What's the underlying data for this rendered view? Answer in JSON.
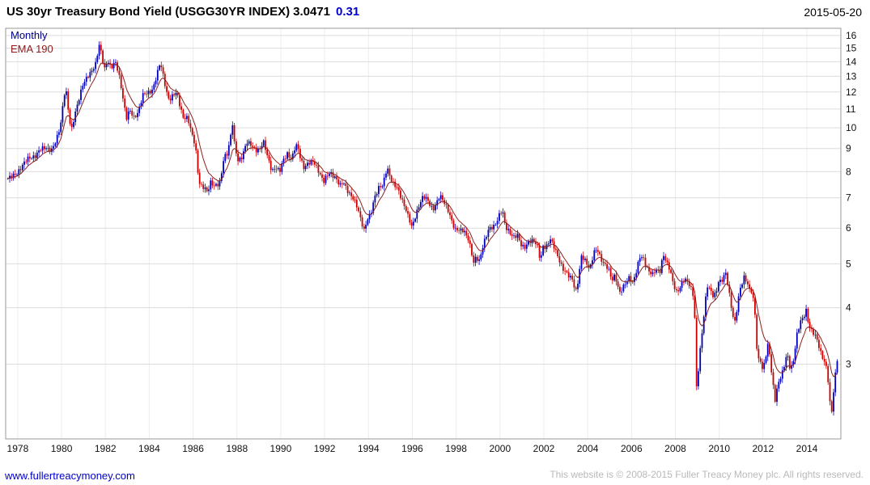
{
  "header": {
    "title": "US 30yr Treasury Bond Yield (USGG30YR INDEX)",
    "price": "3.0471",
    "change": "0.31",
    "date": "2015-05-20"
  },
  "chart": {
    "timeframe_label": "Monthly",
    "ema_label": "EMA 190"
  },
  "footer": {
    "link": "www.fullertreacymoney.com",
    "copyright": "This website is © 2008-2015 Fuller Treacy Money plc. All rights reserved."
  },
  "chart_data": {
    "type": "candlestick",
    "title": "US 30yr Treasury Bond Yield (USGG30YR INDEX)",
    "timeframe": "Monthly",
    "overlay": "EMA 190",
    "unit": "percent yield",
    "last": 3.0471,
    "change": 0.31,
    "date": "2015-05-20",
    "y_axis": {
      "scale": "log",
      "side": "right",
      "ticks": [
        3,
        4,
        5,
        6,
        7,
        8,
        9,
        10,
        11,
        12,
        13,
        14,
        15,
        16
      ],
      "range": [
        2.05,
        16.6
      ]
    },
    "x_axis": {
      "ticks": [
        1978,
        1980,
        1982,
        1984,
        1986,
        1988,
        1990,
        1992,
        1994,
        1996,
        1998,
        2000,
        2002,
        2004,
        2006,
        2008,
        2010,
        2012,
        2014
      ],
      "range": [
        1977.45,
        2015.55
      ]
    },
    "colors": {
      "up": "#0000bb",
      "down": "#cc0000",
      "ema": "#8b2020",
      "grid_h": "#dcdcdc",
      "grid_v": "#ececec",
      "border": "#9a9a9a",
      "change_text": "#0000cc",
      "link": "#0000cc",
      "copyright_text": "#b9b9b9"
    },
    "ema_smoothing_months": 9,
    "series_anchors": [
      [
        1977.55,
        7.72
      ],
      [
        1977.75,
        7.78
      ],
      [
        1977.95,
        7.94
      ],
      [
        1978.2,
        8.25
      ],
      [
        1978.5,
        8.55
      ],
      [
        1978.8,
        8.7
      ],
      [
        1979.0,
        8.9
      ],
      [
        1979.3,
        9.05
      ],
      [
        1979.55,
        8.95
      ],
      [
        1979.75,
        9.3
      ],
      [
        1979.95,
        10.1
      ],
      [
        1980.1,
        11.7
      ],
      [
        1980.18,
        12.4
      ],
      [
        1980.35,
        10.4
      ],
      [
        1980.45,
        9.8
      ],
      [
        1980.7,
        11.2
      ],
      [
        1980.95,
        12.4
      ],
      [
        1981.1,
        12.7
      ],
      [
        1981.3,
        13.2
      ],
      [
        1981.55,
        13.9
      ],
      [
        1981.72,
        15.2
      ],
      [
        1981.85,
        14.3
      ],
      [
        1981.95,
        13.4
      ],
      [
        1982.1,
        14.2
      ],
      [
        1982.25,
        13.6
      ],
      [
        1982.45,
        13.9
      ],
      [
        1982.6,
        13.2
      ],
      [
        1982.75,
        12.1
      ],
      [
        1982.95,
        10.5
      ],
      [
        1983.1,
        10.9
      ],
      [
        1983.3,
        10.5
      ],
      [
        1983.5,
        10.9
      ],
      [
        1983.7,
        11.8
      ],
      [
        1983.95,
        11.9
      ],
      [
        1984.15,
        12.2
      ],
      [
        1984.35,
        13.1
      ],
      [
        1984.5,
        13.9
      ],
      [
        1984.65,
        12.9
      ],
      [
        1984.85,
        11.7
      ],
      [
        1984.95,
        11.6
      ],
      [
        1985.1,
        11.8
      ],
      [
        1985.25,
        11.9
      ],
      [
        1985.4,
        11.2
      ],
      [
        1985.55,
        10.6
      ],
      [
        1985.75,
        10.5
      ],
      [
        1985.95,
        9.6
      ],
      [
        1986.1,
        9.2
      ],
      [
        1986.25,
        7.7
      ],
      [
        1986.35,
        7.45
      ],
      [
        1986.55,
        7.3
      ],
      [
        1986.65,
        7.17
      ],
      [
        1986.8,
        7.6
      ],
      [
        1986.95,
        7.5
      ],
      [
        1987.1,
        7.45
      ],
      [
        1987.25,
        7.55
      ],
      [
        1987.4,
        8.6
      ],
      [
        1987.55,
        8.8
      ],
      [
        1987.7,
        9.5
      ],
      [
        1987.8,
        10.2
      ],
      [
        1987.9,
        9.0
      ],
      [
        1988.05,
        8.45
      ],
      [
        1988.2,
        8.6
      ],
      [
        1988.45,
        9.3
      ],
      [
        1988.65,
        9.1
      ],
      [
        1988.85,
        8.95
      ],
      [
        1989.05,
        9.0
      ],
      [
        1989.2,
        9.3
      ],
      [
        1989.4,
        8.6
      ],
      [
        1989.6,
        8.05
      ],
      [
        1989.75,
        8.2
      ],
      [
        1989.95,
        7.95
      ],
      [
        1990.1,
        8.45
      ],
      [
        1990.3,
        8.8
      ],
      [
        1990.5,
        8.5
      ],
      [
        1990.65,
        9.0
      ],
      [
        1990.75,
        9.15
      ],
      [
        1990.9,
        8.6
      ],
      [
        1991.05,
        8.2
      ],
      [
        1991.25,
        8.3
      ],
      [
        1991.5,
        8.45
      ],
      [
        1991.7,
        8.1
      ],
      [
        1991.95,
        7.55
      ],
      [
        1992.1,
        7.8
      ],
      [
        1992.25,
        8.0
      ],
      [
        1992.5,
        7.75
      ],
      [
        1992.7,
        7.4
      ],
      [
        1992.85,
        7.6
      ],
      [
        1992.95,
        7.45
      ],
      [
        1993.1,
        7.2
      ],
      [
        1993.3,
        6.95
      ],
      [
        1993.5,
        6.65
      ],
      [
        1993.65,
        6.3
      ],
      [
        1993.8,
        5.95
      ],
      [
        1993.95,
        6.25
      ],
      [
        1994.1,
        6.4
      ],
      [
        1994.3,
        7.1
      ],
      [
        1994.5,
        7.45
      ],
      [
        1994.65,
        7.4
      ],
      [
        1994.85,
        8.15
      ],
      [
        1994.95,
        7.9
      ],
      [
        1995.1,
        7.6
      ],
      [
        1995.3,
        7.35
      ],
      [
        1995.5,
        6.95
      ],
      [
        1995.7,
        6.65
      ],
      [
        1995.9,
        6.2
      ],
      [
        1995.98,
        6.0
      ],
      [
        1996.15,
        6.35
      ],
      [
        1996.35,
        6.85
      ],
      [
        1996.5,
        7.1
      ],
      [
        1996.65,
        6.95
      ],
      [
        1996.85,
        6.65
      ],
      [
        1996.95,
        6.6
      ],
      [
        1997.1,
        6.85
      ],
      [
        1997.25,
        7.1
      ],
      [
        1997.45,
        6.8
      ],
      [
        1997.65,
        6.55
      ],
      [
        1997.85,
        6.15
      ],
      [
        1997.95,
        5.95
      ],
      [
        1998.15,
        5.9
      ],
      [
        1998.35,
        5.95
      ],
      [
        1998.55,
        5.7
      ],
      [
        1998.7,
        5.3
      ],
      [
        1998.78,
        4.97
      ],
      [
        1998.9,
        5.15
      ],
      [
        1999.05,
        5.1
      ],
      [
        1999.25,
        5.55
      ],
      [
        1999.5,
        5.95
      ],
      [
        1999.7,
        6.05
      ],
      [
        1999.9,
        6.3
      ],
      [
        1999.98,
        6.45
      ],
      [
        2000.1,
        6.55
      ],
      [
        2000.25,
        6.0
      ],
      [
        2000.45,
        5.9
      ],
      [
        2000.6,
        5.75
      ],
      [
        2000.8,
        5.75
      ],
      [
        2000.95,
        5.5
      ],
      [
        2001.1,
        5.45
      ],
      [
        2001.3,
        5.6
      ],
      [
        2001.5,
        5.6
      ],
      [
        2001.7,
        5.5
      ],
      [
        2001.85,
        5.1
      ],
      [
        2001.95,
        5.5
      ],
      [
        2002.1,
        5.4
      ],
      [
        2002.3,
        5.65
      ],
      [
        2002.5,
        5.45
      ],
      [
        2002.7,
        5.1
      ],
      [
        2002.85,
        4.85
      ],
      [
        2002.95,
        4.8
      ],
      [
        2003.1,
        4.75
      ],
      [
        2003.3,
        4.65
      ],
      [
        2003.45,
        4.3
      ],
      [
        2003.6,
        4.65
      ],
      [
        2003.7,
        5.2
      ],
      [
        2003.85,
        5.15
      ],
      [
        2003.95,
        5.05
      ],
      [
        2004.1,
        4.85
      ],
      [
        2004.3,
        5.3
      ],
      [
        2004.45,
        5.4
      ],
      [
        2004.6,
        5.15
      ],
      [
        2004.8,
        4.95
      ],
      [
        2004.95,
        4.85
      ],
      [
        2005.1,
        4.6
      ],
      [
        2005.25,
        4.75
      ],
      [
        2005.45,
        4.3
      ],
      [
        2005.6,
        4.4
      ],
      [
        2005.75,
        4.55
      ],
      [
        2005.9,
        4.7
      ],
      [
        2006.05,
        4.55
      ],
      [
        2006.2,
        4.75
      ],
      [
        2006.4,
        5.2
      ],
      [
        2006.55,
        5.15
      ],
      [
        2006.75,
        4.85
      ],
      [
        2006.95,
        4.7
      ],
      [
        2007.1,
        4.85
      ],
      [
        2007.3,
        4.85
      ],
      [
        2007.45,
        5.25
      ],
      [
        2007.6,
        5.0
      ],
      [
        2007.75,
        4.85
      ],
      [
        2007.9,
        4.55
      ],
      [
        2008.05,
        4.35
      ],
      [
        2008.2,
        4.4
      ],
      [
        2008.4,
        4.6
      ],
      [
        2008.55,
        4.6
      ],
      [
        2008.7,
        4.45
      ],
      [
        2008.85,
        4.2
      ],
      [
        2008.93,
        3.2
      ],
      [
        2008.97,
        2.6
      ],
      [
        2009.1,
        3.1
      ],
      [
        2009.25,
        3.65
      ],
      [
        2009.45,
        4.5
      ],
      [
        2009.6,
        4.35
      ],
      [
        2009.75,
        4.2
      ],
      [
        2009.9,
        4.4
      ],
      [
        2009.97,
        4.6
      ],
      [
        2010.1,
        4.6
      ],
      [
        2010.3,
        4.75
      ],
      [
        2010.45,
        4.3
      ],
      [
        2010.6,
        3.9
      ],
      [
        2010.7,
        3.7
      ],
      [
        2010.85,
        4.1
      ],
      [
        2010.95,
        4.4
      ],
      [
        2011.1,
        4.55
      ],
      [
        2011.15,
        4.7
      ],
      [
        2011.35,
        4.45
      ],
      [
        2011.5,
        4.35
      ],
      [
        2011.65,
        3.8
      ],
      [
        2011.75,
        2.95
      ],
      [
        2011.85,
        3.15
      ],
      [
        2011.95,
        2.9
      ],
      [
        2012.1,
        3.1
      ],
      [
        2012.25,
        3.35
      ],
      [
        2012.4,
        2.8
      ],
      [
        2012.55,
        2.5
      ],
      [
        2012.7,
        2.75
      ],
      [
        2012.85,
        2.85
      ],
      [
        2012.95,
        2.95
      ],
      [
        2013.1,
        3.15
      ],
      [
        2013.25,
        2.9
      ],
      [
        2013.4,
        3.1
      ],
      [
        2013.55,
        3.5
      ],
      [
        2013.7,
        3.7
      ],
      [
        2013.85,
        3.8
      ],
      [
        2013.97,
        3.95
      ],
      [
        2014.1,
        3.65
      ],
      [
        2014.25,
        3.55
      ],
      [
        2014.45,
        3.4
      ],
      [
        2014.6,
        3.2
      ],
      [
        2014.75,
        3.1
      ],
      [
        2014.9,
        2.95
      ],
      [
        2014.97,
        2.75
      ],
      [
        2015.05,
        2.45
      ],
      [
        2015.1,
        2.25
      ],
      [
        2015.2,
        2.55
      ],
      [
        2015.3,
        2.85
      ],
      [
        2015.38,
        3.05
      ]
    ]
  }
}
